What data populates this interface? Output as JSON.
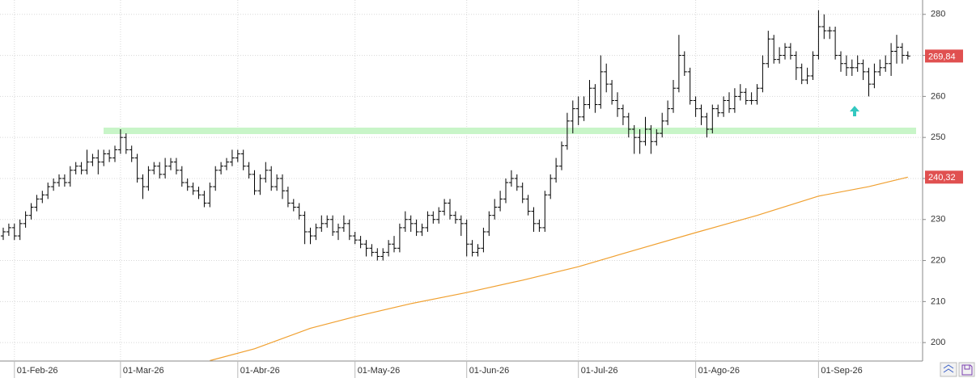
{
  "chart_data": {
    "type": "ohlc",
    "categories": [
      null,
      null,
      "01-Feb-26",
      null,
      null,
      null,
      null,
      null,
      null,
      null,
      null,
      null,
      null,
      null,
      null,
      null,
      null,
      null,
      null,
      null,
      null,
      "01-Mar-26",
      null,
      null,
      null,
      null,
      null,
      null,
      null,
      null,
      null,
      null,
      null,
      null,
      null,
      null,
      null,
      null,
      null,
      null,
      null,
      null,
      "01-Abr-26",
      null,
      null,
      null,
      null,
      null,
      null,
      null,
      null,
      null,
      null,
      null,
      null,
      null,
      null,
      null,
      null,
      null,
      null,
      null,
      null,
      "01-May-26",
      null,
      null,
      null,
      null,
      null,
      null,
      null,
      null,
      null,
      null,
      null,
      null,
      null,
      null,
      null,
      null,
      null,
      null,
      null,
      "01-Jun-26",
      null,
      null,
      null,
      null,
      null,
      null,
      null,
      null,
      null,
      null,
      null,
      null,
      null,
      null,
      null,
      null,
      null,
      null,
      null,
      "01-Jul-26",
      null,
      null,
      null,
      null,
      null,
      null,
      null,
      null,
      null,
      null,
      null,
      null,
      null,
      null,
      null,
      null,
      null,
      null,
      null,
      null,
      "01-Ago-26",
      null,
      null,
      null,
      null,
      null,
      null,
      null,
      null,
      null,
      null,
      null,
      null,
      null,
      null,
      null,
      null,
      null,
      null,
      null,
      null,
      null,
      "01-Sep-26",
      null,
      null,
      null,
      null,
      null,
      null,
      null,
      null,
      null,
      null,
      null,
      null,
      null,
      null,
      null,
      null
    ],
    "open": [
      226,
      227,
      228,
      226,
      229,
      231,
      233,
      235,
      236,
      238,
      239,
      240,
      239,
      242,
      243,
      242,
      244,
      245,
      244,
      246,
      245,
      247,
      250,
      247,
      245,
      240,
      238,
      242,
      243,
      241,
      243,
      244,
      242,
      239,
      238,
      237,
      236,
      234,
      238,
      242,
      243,
      244,
      245,
      246,
      243,
      241,
      237,
      240,
      242,
      238,
      240,
      237,
      234,
      233,
      231,
      227,
      226,
      228,
      229,
      230,
      227,
      228,
      229,
      226,
      225,
      224,
      223,
      222,
      221,
      222,
      224,
      223,
      228,
      230,
      229,
      227,
      228,
      231,
      230,
      232,
      234,
      231,
      230,
      229,
      224,
      222,
      223,
      227,
      231,
      233,
      235,
      239,
      240,
      238,
      235,
      232,
      229,
      228,
      236,
      240,
      243,
      248,
      254,
      257,
      255,
      258,
      262,
      258,
      266,
      263,
      259,
      257,
      255,
      252,
      250,
      249,
      252,
      249,
      251,
      254,
      257,
      262,
      270,
      266,
      259,
      257,
      255,
      252,
      257,
      256,
      259,
      257,
      260,
      261,
      259,
      259,
      262,
      268,
      274,
      269,
      270,
      272,
      270,
      267,
      264,
      265,
      270,
      277,
      276,
      276,
      270,
      268,
      267,
      267,
      268,
      266,
      263,
      266,
      267,
      268,
      271,
      272,
      270
    ],
    "high": [
      228,
      229,
      229,
      230,
      232,
      234,
      236,
      237,
      239,
      240,
      241,
      241,
      243,
      244,
      244,
      247,
      246,
      247,
      247,
      247,
      248,
      252,
      251,
      248,
      246,
      241,
      243,
      244,
      244,
      245,
      245,
      245,
      243,
      240,
      239,
      238,
      237,
      239,
      243,
      244,
      245,
      247,
      247,
      247,
      244,
      242,
      241,
      244,
      243,
      241,
      241,
      238,
      235,
      234,
      232,
      228,
      229,
      231,
      231,
      231,
      229,
      231,
      230,
      227,
      226,
      225,
      224,
      223,
      223,
      225,
      226,
      229,
      232,
      231,
      230,
      229,
      232,
      232,
      233,
      235,
      235,
      232,
      231,
      230,
      225,
      224,
      228,
      232,
      235,
      237,
      240,
      242,
      241,
      239,
      236,
      233,
      230,
      237,
      241,
      245,
      249,
      256,
      259,
      260,
      260,
      264,
      263,
      270,
      268,
      264,
      261,
      258,
      256,
      253,
      252,
      255,
      253,
      252,
      256,
      259,
      264,
      275,
      271,
      267,
      260,
      258,
      256,
      258,
      258,
      260,
      261,
      262,
      263,
      262,
      261,
      263,
      270,
      276,
      275,
      272,
      273,
      273,
      271,
      268,
      267,
      271,
      281,
      280,
      277,
      277,
      271,
      270,
      269,
      270,
      269,
      267,
      268,
      269,
      270,
      273,
      275,
      273,
      271
    ],
    "low": [
      225,
      226,
      225,
      225,
      228,
      230,
      232,
      234,
      235,
      237,
      238,
      238,
      238,
      241,
      241,
      241,
      243,
      241,
      243,
      244,
      244,
      246,
      246,
      244,
      239,
      235,
      237,
      241,
      240,
      240,
      242,
      241,
      238,
      237,
      236,
      235,
      233,
      233,
      237,
      241,
      242,
      243,
      244,
      242,
      240,
      236,
      236,
      239,
      237,
      237,
      235,
      233,
      232,
      230,
      224,
      224,
      225,
      227,
      228,
      226,
      225,
      227,
      225,
      224,
      223,
      221,
      221,
      220,
      220,
      221,
      222,
      222,
      227,
      227,
      226,
      226,
      227,
      229,
      229,
      231,
      230,
      229,
      226,
      221,
      221,
      221,
      222,
      226,
      230,
      232,
      234,
      238,
      237,
      234,
      231,
      227,
      227,
      227,
      235,
      239,
      242,
      247,
      251,
      253,
      254,
      257,
      256,
      257,
      261,
      258,
      255,
      253,
      250,
      246,
      246,
      248,
      246,
      248,
      250,
      253,
      256,
      261,
      265,
      258,
      255,
      253,
      250,
      251,
      255,
      255,
      256,
      256,
      259,
      258,
      258,
      258,
      261,
      267,
      268,
      268,
      269,
      269,
      264,
      263,
      263,
      264,
      269,
      274,
      274,
      269,
      266,
      265,
      265,
      266,
      264,
      260,
      262,
      265,
      266,
      265,
      268,
      268,
      269
    ],
    "close": [
      227,
      228,
      226,
      229,
      231,
      233,
      235,
      236,
      238,
      239,
      240,
      239,
      242,
      243,
      242,
      244,
      245,
      244,
      246,
      245,
      247,
      250,
      247,
      245,
      240,
      238,
      242,
      243,
      241,
      243,
      244,
      242,
      239,
      238,
      237,
      236,
      234,
      238,
      242,
      243,
      244,
      245,
      246,
      243,
      241,
      237,
      240,
      242,
      238,
      240,
      237,
      234,
      233,
      231,
      227,
      226,
      228,
      229,
      230,
      227,
      228,
      229,
      226,
      225,
      224,
      223,
      222,
      221,
      222,
      224,
      223,
      228,
      230,
      229,
      227,
      228,
      231,
      230,
      232,
      234,
      231,
      230,
      229,
      224,
      222,
      223,
      227,
      231,
      233,
      235,
      239,
      240,
      238,
      235,
      232,
      229,
      228,
      236,
      240,
      243,
      248,
      254,
      257,
      255,
      258,
      262,
      258,
      266,
      263,
      259,
      257,
      255,
      252,
      250,
      249,
      252,
      249,
      251,
      254,
      257,
      262,
      270,
      266,
      259,
      257,
      255,
      252,
      257,
      256,
      259,
      257,
      260,
      261,
      259,
      259,
      262,
      268,
      274,
      269,
      270,
      272,
      270,
      267,
      264,
      265,
      270,
      277,
      276,
      276,
      270,
      268,
      267,
      267,
      268,
      266,
      263,
      266,
      267,
      268,
      271,
      272,
      270,
      269.84
    ],
    "color": "#000000",
    "last_price": {
      "value": 269.84,
      "label": "269,84"
    },
    "ma": {
      "color": "#f0a030",
      "x": [
        37,
        45,
        55,
        63,
        73,
        83,
        93,
        103,
        113,
        124,
        135,
        146,
        155,
        162
      ],
      "values": [
        195.6,
        198.5,
        203.5,
        206.3,
        209.5,
        212.2,
        215.2,
        218.5,
        222.5,
        226.8,
        231,
        235.7,
        238,
        240.32
      ],
      "last_label": {
        "value": 240.32,
        "label": "240,32"
      }
    },
    "support": {
      "value": 251.6,
      "color": "#c8f5c8"
    },
    "ylim": [
      195.5,
      283.5
    ],
    "yticks": [
      200,
      210,
      220,
      230,
      240,
      250,
      260,
      270,
      280
    ],
    "grid": true
  }
}
